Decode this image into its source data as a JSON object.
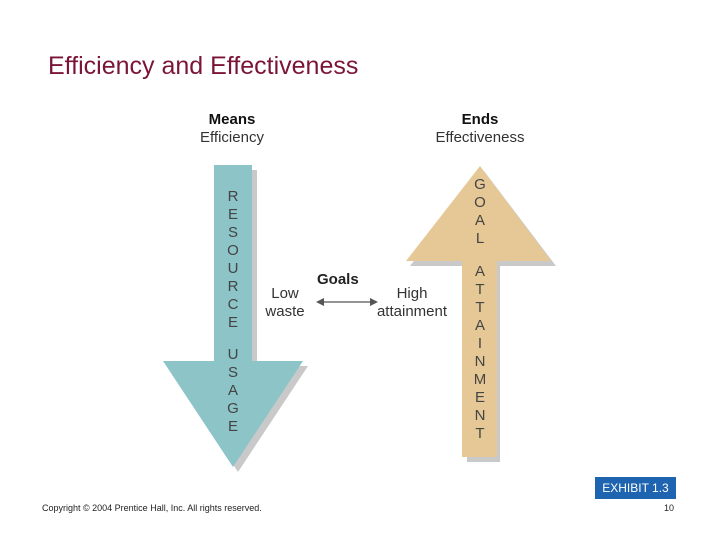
{
  "title": "Efficiency and Effectiveness",
  "means": {
    "heading": "Means",
    "sub": "Efficiency"
  },
  "ends": {
    "heading": "Ends",
    "sub": "Effectiveness"
  },
  "left_arrow": {
    "word1": [
      "R",
      "E",
      "S",
      "O",
      "U",
      "R",
      "C",
      "E"
    ],
    "word2": [
      "U",
      "S",
      "A",
      "G",
      "E"
    ],
    "color": "#8cc4c8"
  },
  "right_arrow": {
    "word1": [
      "G",
      "O",
      "A",
      "L"
    ],
    "word2": [
      "A",
      "T",
      "T",
      "A",
      "I",
      "N",
      "M",
      "E",
      "N",
      "T"
    ],
    "color": "#e6c896"
  },
  "low_waste": [
    "Low",
    "waste"
  ],
  "high_attainment": [
    "High",
    "attainment"
  ],
  "goals_label": "Goals",
  "exhibit": "EXHIBIT 1.3",
  "copyright": "Copyright © 2004 Prentice Hall, Inc. All rights reserved.",
  "page_number": "10"
}
